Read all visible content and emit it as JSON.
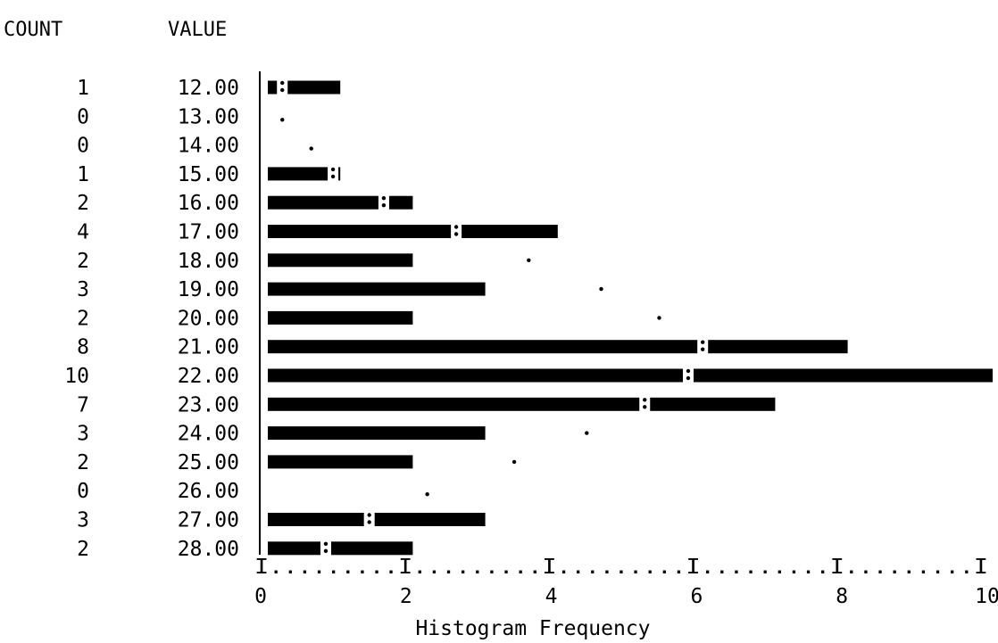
{
  "chart_data": {
    "type": "bar",
    "orientation": "horizontal",
    "column_headers": {
      "count": "COUNT",
      "value": "VALUE"
    },
    "xlabel": "Histogram Frequency",
    "x_ticks": [
      0,
      2,
      4,
      6,
      8,
      10
    ],
    "x_tick_labels": [
      "0",
      "2",
      "4",
      "6",
      "8",
      "10"
    ],
    "axis_rule": "I.........I.........I.........I.........I.........I",
    "xlim": [
      0,
      10
    ],
    "rows": [
      {
        "count": "1",
        "value": "12.00",
        "frequency": 1,
        "expected": 0.2
      },
      {
        "count": "0",
        "value": "13.00",
        "frequency": 0,
        "expected": 0.2
      },
      {
        "count": "0",
        "value": "14.00",
        "frequency": 0,
        "expected": 0.6
      },
      {
        "count": "1",
        "value": "15.00",
        "frequency": 1,
        "expected": 0.9
      },
      {
        "count": "2",
        "value": "16.00",
        "frequency": 2,
        "expected": 1.6
      },
      {
        "count": "4",
        "value": "17.00",
        "frequency": 4,
        "expected": 2.6
      },
      {
        "count": "2",
        "value": "18.00",
        "frequency": 2,
        "expected": 3.6
      },
      {
        "count": "3",
        "value": "19.00",
        "frequency": 3,
        "expected": 4.6
      },
      {
        "count": "2",
        "value": "20.00",
        "frequency": 2,
        "expected": 5.4
      },
      {
        "count": "8",
        "value": "21.00",
        "frequency": 8,
        "expected": 6.0
      },
      {
        "count": "10",
        "value": "22.00",
        "frequency": 10,
        "expected": 5.8
      },
      {
        "count": "7",
        "value": "23.00",
        "frequency": 7,
        "expected": 5.2
      },
      {
        "count": "3",
        "value": "24.00",
        "frequency": 3,
        "expected": 4.4
      },
      {
        "count": "2",
        "value": "25.00",
        "frequency": 2,
        "expected": 3.4
      },
      {
        "count": "0",
        "value": "26.00",
        "frequency": 0,
        "expected": 2.2
      },
      {
        "count": "3",
        "value": "27.00",
        "frequency": 3,
        "expected": 1.4
      },
      {
        "count": "2",
        "value": "28.00",
        "frequency": 2,
        "expected": 0.8
      }
    ]
  }
}
